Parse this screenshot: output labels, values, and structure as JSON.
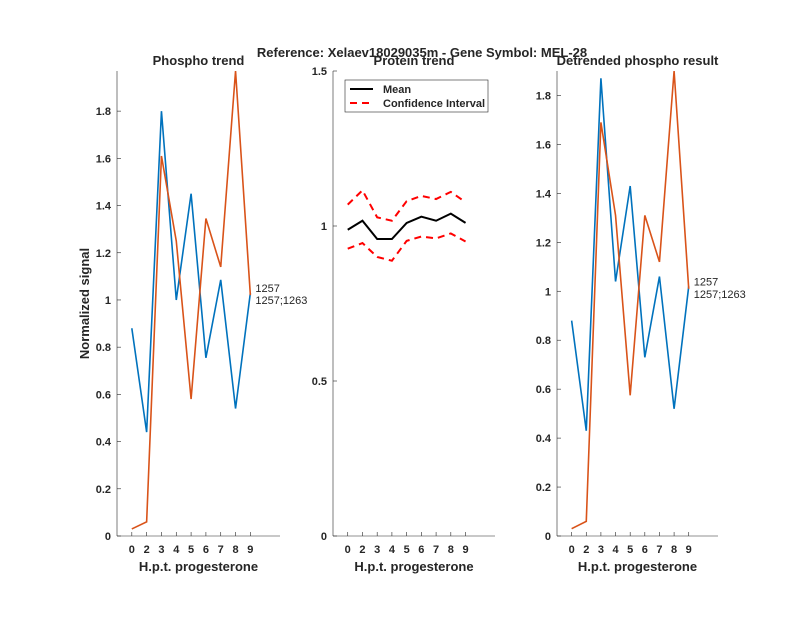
{
  "suptitle": "Reference:  Xelaev18029035m - Gene Symbol:  MEL-28",
  "colors": {
    "blue": "#0072BD",
    "orange": "#D95319",
    "mean": "#000000",
    "ci": "#FF0000"
  },
  "chart_data": [
    {
      "type": "line",
      "title": "Phospho trend",
      "xlabel": "H.p.t. progesterone",
      "ylabel": "Normalized signal",
      "categories": [
        "0",
        "2",
        "3",
        "4",
        "5",
        "6",
        "7",
        "8",
        "9"
      ],
      "ylim": [
        0,
        1.97
      ],
      "yticks": [
        0,
        0.2,
        0.4,
        0.6,
        0.8,
        1,
        1.2,
        1.4,
        1.6,
        1.8
      ],
      "yticklabels": [
        "0",
        "0.2",
        "0.4",
        "0.6",
        "0.8",
        "1",
        "1.2",
        "1.4",
        "1.6",
        "1.8"
      ],
      "series": [
        {
          "name": "1257",
          "color": "blue",
          "values": [
            0.88,
            0.44,
            1.8,
            1.0,
            1.45,
            0.755,
            1.085,
            0.54,
            1.03
          ]
        },
        {
          "name": "1257;1263",
          "color": "orange",
          "values": [
            0.03,
            0.06,
            1.61,
            1.25,
            0.58,
            1.345,
            1.14,
            1.97,
            1.02
          ]
        }
      ]
    },
    {
      "type": "line",
      "title": "Protein trend",
      "xlabel": "H.p.t. progesterone",
      "ylabel": "",
      "categories": [
        "0",
        "2",
        "3",
        "4",
        "5",
        "6",
        "7",
        "8",
        "9"
      ],
      "ylim": [
        0,
        1.5
      ],
      "yticks": [
        0,
        0.5,
        1,
        1.5
      ],
      "yticklabels": [
        "0",
        "0.5",
        "1",
        "1.5"
      ],
      "legend": {
        "placement": "top",
        "entries": [
          "Mean",
          "Confidence Interval"
        ]
      },
      "series": [
        {
          "name": "Mean",
          "color": "mean",
          "style": "solid",
          "values": [
            0.988,
            1.017,
            0.958,
            0.958,
            1.01,
            1.03,
            1.017,
            1.04,
            1.01
          ]
        },
        {
          "name": "Confidence Interval upper",
          "color": "ci",
          "style": "dashed",
          "values": [
            1.069,
            1.115,
            1.028,
            1.017,
            1.08,
            1.097,
            1.087,
            1.11,
            1.077
          ]
        },
        {
          "name": "Confidence Interval lower",
          "color": "ci",
          "style": "dashed",
          "values": [
            0.927,
            0.945,
            0.9,
            0.888,
            0.952,
            0.966,
            0.96,
            0.976,
            0.95
          ]
        }
      ]
    },
    {
      "type": "line",
      "title": "Detrended phospho result",
      "xlabel": "H.p.t. progesterone",
      "ylabel": "",
      "categories": [
        "0",
        "2",
        "3",
        "4",
        "5",
        "6",
        "7",
        "8",
        "9"
      ],
      "ylim": [
        0,
        1.9
      ],
      "yticks": [
        0,
        0.2,
        0.4,
        0.6,
        0.8,
        1,
        1.2,
        1.4,
        1.6,
        1.8
      ],
      "yticklabels": [
        "0",
        "0.2",
        "0.4",
        "0.6",
        "0.8",
        "1",
        "1.2",
        "1.4",
        "1.6",
        "1.8"
      ],
      "series": [
        {
          "name": "1257",
          "color": "blue",
          "values": [
            0.88,
            0.43,
            1.87,
            1.04,
            1.43,
            0.73,
            1.06,
            0.52,
            1.02
          ]
        },
        {
          "name": "1257;1263",
          "color": "orange",
          "values": [
            0.03,
            0.06,
            1.69,
            1.31,
            0.575,
            1.31,
            1.12,
            1.9,
            1.01
          ]
        }
      ]
    }
  ]
}
